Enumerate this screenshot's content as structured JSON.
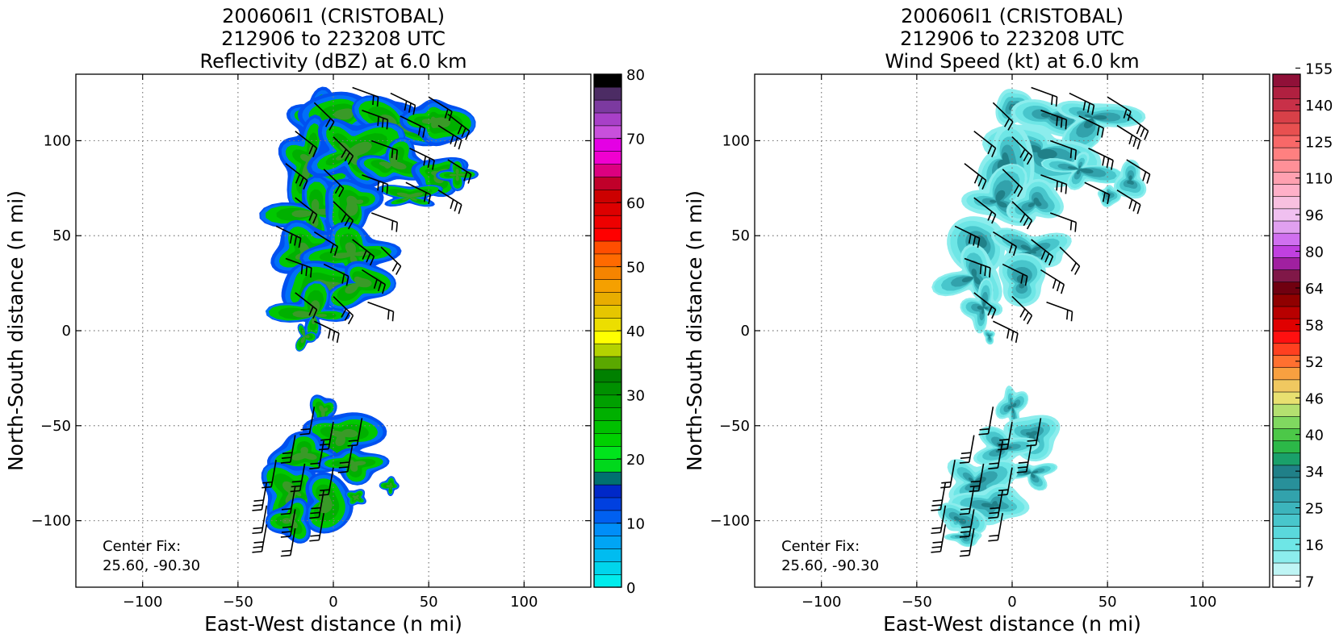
{
  "chart_data": [
    {
      "type": "heatmap",
      "title_lines": [
        "200606I1 (CRISTOBAL)",
        "212906 to 223208 UTC",
        "Reflectivity (dBZ) at 6.0 km"
      ],
      "xlabel": "East-West distance (n mi)",
      "ylabel": "North-South distance (n mi)",
      "xlim": [
        -135,
        135
      ],
      "ylim": [
        -135,
        135
      ],
      "xticks": [
        -100,
        -50,
        0,
        50,
        100
      ],
      "yticks": [
        -100,
        -50,
        0,
        50,
        100
      ],
      "xtick_labels": [
        "−100",
        "−50",
        "0",
        "50",
        "100"
      ],
      "ytick_labels": [
        "−100",
        "−50",
        "0",
        "50",
        "100"
      ],
      "grid": true,
      "annotation": [
        "Center Fix:",
        "25.60, -90.30"
      ],
      "colorbar": {
        "range": [
          0,
          80
        ],
        "ticks": [
          0,
          10,
          20,
          30,
          40,
          50,
          60,
          70,
          80
        ],
        "tick_labels": [
          "0",
          "10",
          "20",
          "30",
          "40",
          "50",
          "60",
          "70",
          "80"
        ],
        "colors": [
          "#00ecec",
          "#00d5ec",
          "#00bcf0",
          "#00a5f5",
          "#008ef8",
          "#0060f0",
          "#0040e0",
          "#0028c8",
          "#007070",
          "#00d81c",
          "#00e41c",
          "#00d000",
          "#00c000",
          "#00b000",
          "#00a000",
          "#009000",
          "#008000",
          "#5aa800",
          "#b4d200",
          "#ffff00",
          "#ecde00",
          "#e6c600",
          "#e8ad00",
          "#f5a000",
          "#f58400",
          "#ff6a00",
          "#ff4e00",
          "#ff0000",
          "#ee0000",
          "#dd0000",
          "#cc0000",
          "#c0002a",
          "#dc0080",
          "#f000d0",
          "#e400e4",
          "#c850dc",
          "#a840c8",
          "#7c3aa0",
          "#4c2c64",
          "#000000"
        ]
      },
      "cells_legend": "values in dBZ",
      "regions": [
        {
          "name": "northern band",
          "x_range": [
            -25,
            75
          ],
          "y_range": [
            -5,
            133
          ],
          "dominant_values": "15-28 dBZ",
          "max_value": 38
        },
        {
          "name": "southern band",
          "x_range": [
            -32,
            25
          ],
          "y_range": [
            -113,
            -35
          ],
          "dominant_values": "12-25 dBZ"
        }
      ]
    },
    {
      "type": "heatmap",
      "title_lines": [
        "200606I1 (CRISTOBAL)",
        "212906 to 223208 UTC",
        "Wind Speed (kt) at 6.0 km"
      ],
      "xlabel": "East-West distance (n mi)",
      "ylabel": "North-South distance (n mi)",
      "xlim": [
        -135,
        135
      ],
      "ylim": [
        -135,
        135
      ],
      "xticks": [
        -100,
        -50,
        0,
        50,
        100
      ],
      "yticks": [
        -100,
        -50,
        0,
        50,
        100
      ],
      "xtick_labels": [
        "−100",
        "−50",
        "0",
        "50",
        "100"
      ],
      "ytick_labels": [
        "−100",
        "−50",
        "0",
        "50",
        "100"
      ],
      "grid": true,
      "annotation": [
        "Center Fix:",
        "25.60, -90.30"
      ],
      "colorbar": {
        "tick_labels": [
          "7",
          "16",
          "25",
          "34",
          "40",
          "46",
          "52",
          "58",
          "64",
          "80",
          "96",
          "110",
          "125",
          "140",
          "155"
        ],
        "colors": [
          "#ffffff",
          "#bff5f5",
          "#8ceded",
          "#6ee6e6",
          "#5ad8dc",
          "#48c6cc",
          "#3cb4bc",
          "#32a2ac",
          "#28909a",
          "#208088",
          "#1aa06a",
          "#2cb848",
          "#4cc848",
          "#80d860",
          "#b4e070",
          "#e8e070",
          "#f0c860",
          "#f8a040",
          "#ff7030",
          "#ff4020",
          "#ff1010",
          "#e00000",
          "#b80000",
          "#900000",
          "#700010",
          "#801848",
          "#a020a0",
          "#c040e0",
          "#d070f0",
          "#e0a0f0",
          "#f0c0f0",
          "#f8c0e0",
          "#ffb0c8",
          "#ffa0b0",
          "#ff9098",
          "#ff8080",
          "#f86868",
          "#e85050",
          "#d84048",
          "#c83048",
          "#b02040",
          "#901038"
        ]
      },
      "regions": [
        {
          "name": "northern band",
          "x_range": [
            -25,
            70
          ],
          "y_range": [
            -5,
            130
          ],
          "dominant_values": "10-25 kt",
          "max_value": 30
        },
        {
          "name": "southern band",
          "x_range": [
            -35,
            22
          ],
          "y_range": [
            -108,
            -30
          ],
          "dominant_values": "10-22 kt"
        }
      ]
    }
  ],
  "colors": {
    "grid": "#7a7a7a",
    "barb": "#000000",
    "refl_blue": "#0050f0",
    "refl_green": "#00c800",
    "wind_light": "#6ee6e6",
    "wind_dark": "#208088"
  }
}
